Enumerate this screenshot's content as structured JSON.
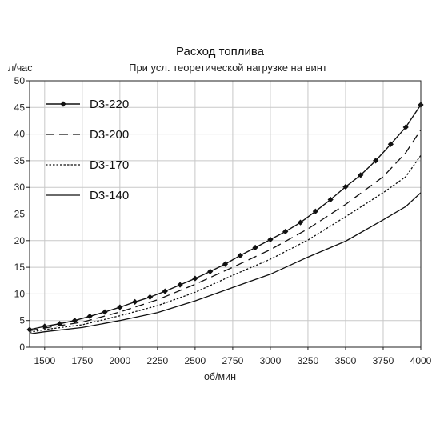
{
  "chart_data": {
    "type": "line",
    "title": "Расход топлива",
    "subtitle": "При усл. теоретической нагрузке на винт",
    "xlabel": "об/мин",
    "ylabel": "л/час",
    "xlim": [
      1400,
      4000
    ],
    "ylim": [
      0,
      50
    ],
    "xticks": [
      1500,
      1750,
      2000,
      2250,
      2500,
      2750,
      3000,
      3250,
      3500,
      3750,
      4000
    ],
    "yticks": [
      0,
      5,
      10,
      15,
      20,
      25,
      30,
      35,
      40,
      45,
      50
    ],
    "grid": true,
    "legend": "top-left",
    "series": [
      {
        "name": "D3-220",
        "style": "solid-diamond",
        "x": [
          1400,
          1500,
          1600,
          1700,
          1800,
          1900,
          2000,
          2100,
          2200,
          2300,
          2400,
          2500,
          2600,
          2700,
          2800,
          2900,
          3000,
          3100,
          3200,
          3300,
          3400,
          3500,
          3600,
          3700,
          3800,
          3900,
          4000
        ],
        "y": [
          3.3,
          3.9,
          4.4,
          5.0,
          5.8,
          6.6,
          7.5,
          8.5,
          9.4,
          10.5,
          11.7,
          12.9,
          14.2,
          15.6,
          17.2,
          18.7,
          20.2,
          21.7,
          23.4,
          25.5,
          27.7,
          30.1,
          32.3,
          35.0,
          38.1,
          41.3,
          45.5
        ]
      },
      {
        "name": "D3-200",
        "style": "dashed",
        "x": [
          1400,
          1500,
          1750,
          2000,
          2250,
          2500,
          2750,
          3000,
          3250,
          3500,
          3750,
          3900,
          4000
        ],
        "y": [
          3.1,
          3.6,
          4.7,
          6.6,
          8.9,
          11.8,
          15.0,
          18.3,
          22.2,
          26.8,
          32.0,
          36.5,
          40.8
        ]
      },
      {
        "name": "D3-170",
        "style": "dotted",
        "x": [
          1400,
          1500,
          1750,
          2000,
          2250,
          2500,
          2750,
          3000,
          3250,
          3500,
          3750,
          3900,
          4000
        ],
        "y": [
          2.8,
          3.3,
          4.2,
          5.9,
          7.8,
          10.3,
          13.5,
          16.5,
          20.1,
          24.5,
          29.0,
          32.0,
          36.0
        ]
      },
      {
        "name": "D3-140",
        "style": "solid",
        "x": [
          1400,
          1500,
          1750,
          2000,
          2250,
          2500,
          2750,
          3000,
          3250,
          3500,
          3750,
          3900,
          4000
        ],
        "y": [
          2.5,
          2.9,
          3.7,
          5.0,
          6.5,
          8.7,
          11.2,
          13.7,
          16.9,
          19.9,
          23.9,
          26.4,
          29.0
        ]
      }
    ]
  }
}
